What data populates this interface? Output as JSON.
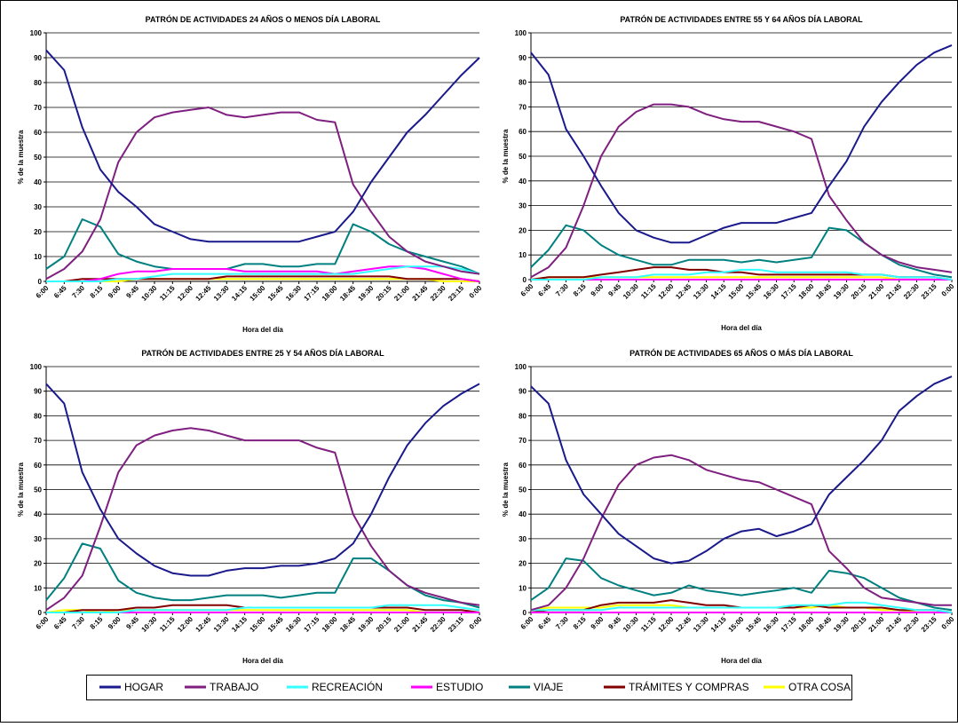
{
  "chart_data": [
    {
      "type": "line",
      "title": "PATRÓN DE ACTIVIDADES 24 AÑOS O MENOS  DÍA LABORAL",
      "xlabel": "Hora del día",
      "ylabel": "% de la muestra",
      "categories": [
        "6:00",
        "6:45",
        "7:30",
        "8:15",
        "9:00",
        "9:45",
        "10:30",
        "11:15",
        "12:00",
        "12:45",
        "13:30",
        "14:15",
        "15:00",
        "15:45",
        "16:30",
        "17:15",
        "18:00",
        "18:45",
        "19:30",
        "20:15",
        "21:00",
        "21:45",
        "22:30",
        "23:15",
        "0:00"
      ],
      "ylim": [
        0,
        100
      ],
      "yticks": [
        0,
        10,
        20,
        30,
        40,
        50,
        60,
        70,
        80,
        90,
        100
      ],
      "grid": true,
      "series": [
        {
          "name": "HOGAR",
          "color": "#1a1a8c",
          "values": [
            93,
            85,
            62,
            45,
            36,
            30,
            23,
            20,
            17,
            16,
            16,
            16,
            16,
            16,
            16,
            18,
            20,
            28,
            40,
            50,
            60,
            67,
            75,
            83,
            90
          ]
        },
        {
          "name": "TRABAJO",
          "color": "#7f1f7f",
          "values": [
            1,
            5,
            12,
            25,
            48,
            60,
            66,
            68,
            69,
            70,
            67,
            66,
            67,
            68,
            68,
            65,
            64,
            39,
            28,
            18,
            12,
            8,
            6,
            4,
            3
          ]
        },
        {
          "name": "RECREACIÓN",
          "color": "#33ffff",
          "values": [
            0,
            0,
            0,
            0,
            1,
            1,
            2,
            3,
            3,
            3,
            3,
            3,
            3,
            3,
            3,
            3,
            3,
            3,
            4,
            5,
            6,
            6,
            6,
            5,
            3
          ]
        },
        {
          "name": "ESTUDIO",
          "color": "#ff00ff",
          "values": [
            0,
            0,
            0,
            1,
            3,
            4,
            4,
            5,
            5,
            5,
            5,
            4,
            4,
            4,
            4,
            4,
            3,
            4,
            5,
            6,
            6,
            5,
            3,
            1,
            0
          ]
        },
        {
          "name": "VIAJE",
          "color": "#008080",
          "values": [
            5,
            10,
            25,
            22,
            11,
            8,
            6,
            5,
            5,
            5,
            5,
            7,
            7,
            6,
            6,
            7,
            7,
            23,
            20,
            15,
            12,
            10,
            8,
            6,
            3
          ]
        },
        {
          "name": "TRÁMITES Y COMPRAS",
          "color": "#800000",
          "values": [
            0,
            0,
            1,
            1,
            1,
            1,
            1,
            1,
            1,
            1,
            2,
            2,
            2,
            2,
            2,
            2,
            2,
            2,
            2,
            2,
            1,
            1,
            1,
            1,
            0
          ]
        },
        {
          "name": "OTRA COSA",
          "color": "#ffff00",
          "values": [
            0,
            0,
            0,
            0,
            0,
            1,
            1,
            1,
            1,
            1,
            1,
            1,
            1,
            1,
            1,
            1,
            1,
            1,
            1,
            1,
            1,
            1,
            0,
            0,
            0
          ]
        }
      ]
    },
    {
      "type": "line",
      "title": "PATRÓN DE ACTIVIDADES ENTRE 55 Y 64 AÑOS DÍA LABORAL",
      "xlabel": "Hora del día",
      "ylabel": "% de la muestra",
      "categories": [
        "6:00",
        "6:45",
        "7:30",
        "8:15",
        "9:00",
        "9:45",
        "10:30",
        "11:15",
        "12:00",
        "12:45",
        "13:30",
        "14:15",
        "15:00",
        "15:45",
        "16:30",
        "17:15",
        "18:00",
        "18:45",
        "19:30",
        "20:15",
        "21:00",
        "21:45",
        "22:30",
        "23:15",
        "0:00"
      ],
      "ylim": [
        0,
        100
      ],
      "yticks": [
        0,
        10,
        20,
        30,
        40,
        50,
        60,
        70,
        80,
        90,
        100
      ],
      "grid": true,
      "series": [
        {
          "name": "HOGAR",
          "color": "#1a1a8c",
          "values": [
            92,
            83,
            61,
            50,
            38,
            27,
            20,
            17,
            15,
            15,
            18,
            21,
            23,
            23,
            23,
            25,
            27,
            38,
            48,
            62,
            72,
            80,
            87,
            92,
            95
          ]
        },
        {
          "name": "TRABAJO",
          "color": "#7f1f7f",
          "values": [
            1,
            5,
            13,
            30,
            50,
            62,
            68,
            71,
            71,
            70,
            67,
            65,
            64,
            64,
            62,
            60,
            57,
            34,
            24,
            15,
            10,
            7,
            5,
            4,
            3
          ]
        },
        {
          "name": "RECREACIÓN",
          "color": "#33ffff",
          "values": [
            0,
            0,
            0,
            0,
            1,
            1,
            1,
            2,
            2,
            2,
            3,
            3,
            4,
            4,
            3,
            3,
            3,
            3,
            3,
            2,
            2,
            1,
            1,
            1,
            0
          ]
        },
        {
          "name": "ESTUDIO",
          "color": "#ff00ff",
          "values": [
            0,
            0,
            0,
            0,
            0,
            0,
            0,
            0,
            0,
            0,
            0,
            0,
            0,
            0,
            0,
            0,
            0,
            0,
            0,
            0,
            0,
            0,
            0,
            0,
            0
          ]
        },
        {
          "name": "VIAJE",
          "color": "#008080",
          "values": [
            5,
            12,
            22,
            20,
            14,
            10,
            8,
            6,
            6,
            8,
            8,
            8,
            7,
            8,
            7,
            8,
            9,
            21,
            20,
            15,
            10,
            6,
            4,
            2,
            1
          ]
        },
        {
          "name": "TRÁMITES Y COMPRAS",
          "color": "#800000",
          "values": [
            0,
            1,
            1,
            1,
            2,
            3,
            4,
            5,
            5,
            4,
            4,
            3,
            3,
            2,
            2,
            2,
            2,
            2,
            2,
            2,
            2,
            1,
            1,
            1,
            0
          ]
        },
        {
          "name": "OTRA COSA",
          "color": "#ffff00",
          "values": [
            0,
            1,
            1,
            1,
            1,
            1,
            1,
            1,
            1,
            1,
            1,
            1,
            1,
            1,
            1,
            1,
            1,
            1,
            1,
            1,
            1,
            0,
            0,
            0,
            0
          ]
        }
      ]
    },
    {
      "type": "line",
      "title": "PATRÓN DE ACTIVIDADES ENTRE 25 Y 54 AÑOS DÍA LABORAL",
      "xlabel": "Hora del día",
      "ylabel": "% de la muestra",
      "categories": [
        "6:00",
        "6:45",
        "7:30",
        "8:15",
        "9:00",
        "9:45",
        "10:30",
        "11:15",
        "12:00",
        "12:45",
        "13:30",
        "14:15",
        "15:00",
        "15:45",
        "16:30",
        "17:15",
        "18:00",
        "18:45",
        "19:30",
        "20:15",
        "21:00",
        "21:45",
        "22:30",
        "23:15",
        "0:00"
      ],
      "ylim": [
        0,
        100
      ],
      "yticks": [
        0,
        10,
        20,
        30,
        40,
        50,
        60,
        70,
        80,
        90,
        100
      ],
      "grid": true,
      "series": [
        {
          "name": "HOGAR",
          "color": "#1a1a8c",
          "values": [
            93,
            85,
            57,
            42,
            30,
            24,
            19,
            16,
            15,
            15,
            17,
            18,
            18,
            19,
            19,
            20,
            22,
            28,
            40,
            55,
            68,
            77,
            84,
            89,
            93
          ]
        },
        {
          "name": "TRABAJO",
          "color": "#7f1f7f",
          "values": [
            1,
            6,
            15,
            35,
            57,
            68,
            72,
            74,
            75,
            74,
            72,
            70,
            70,
            70,
            70,
            67,
            65,
            40,
            27,
            17,
            11,
            8,
            6,
            4,
            3
          ]
        },
        {
          "name": "RECREACIÓN",
          "color": "#33ffff",
          "values": [
            0,
            0,
            0,
            0,
            0,
            1,
            1,
            1,
            1,
            1,
            1,
            2,
            2,
            2,
            2,
            2,
            2,
            2,
            2,
            3,
            3,
            3,
            3,
            2,
            1
          ]
        },
        {
          "name": "ESTUDIO",
          "color": "#ff00ff",
          "values": [
            0,
            0,
            0,
            0,
            0,
            0,
            0,
            0,
            0,
            0,
            0,
            0,
            0,
            0,
            0,
            0,
            0,
            0,
            0,
            0,
            0,
            0,
            0,
            0,
            0
          ]
        },
        {
          "name": "VIAJE",
          "color": "#008080",
          "values": [
            5,
            14,
            28,
            26,
            13,
            8,
            6,
            5,
            5,
            6,
            7,
            7,
            7,
            6,
            7,
            8,
            8,
            22,
            22,
            17,
            11,
            7,
            5,
            4,
            2
          ]
        },
        {
          "name": "TRÁMITES Y COMPRAS",
          "color": "#800000",
          "values": [
            0,
            0,
            1,
            1,
            1,
            2,
            2,
            3,
            3,
            3,
            3,
            2,
            2,
            2,
            2,
            2,
            2,
            2,
            2,
            2,
            2,
            1,
            1,
            1,
            0
          ]
        },
        {
          "name": "OTRA COSA",
          "color": "#ffff00",
          "values": [
            0,
            1,
            1,
            0,
            1,
            1,
            1,
            1,
            1,
            1,
            1,
            1,
            1,
            1,
            1,
            1,
            1,
            1,
            1,
            1,
            1,
            0,
            0,
            0,
            0
          ]
        }
      ]
    },
    {
      "type": "line",
      "title": "PATRÓN DE ACTIVIDADES 65 AÑOS O MÁS DÍA LABORAL",
      "xlabel": "Hora del día",
      "ylabel": "% de la muestra",
      "categories": [
        "6:00",
        "6:45",
        "7:30",
        "8:15",
        "9:00",
        "9:45",
        "10:30",
        "11:15",
        "12:00",
        "12:45",
        "13:30",
        "14:15",
        "15:00",
        "15:45",
        "16:30",
        "17:15",
        "18:00",
        "18:45",
        "19:30",
        "20:15",
        "21:00",
        "21:45",
        "22:30",
        "23:15",
        "0:00"
      ],
      "ylim": [
        0,
        100
      ],
      "yticks": [
        0,
        10,
        20,
        30,
        40,
        50,
        60,
        70,
        80,
        90,
        100
      ],
      "grid": true,
      "series": [
        {
          "name": "HOGAR",
          "color": "#1a1a8c",
          "values": [
            92,
            85,
            62,
            48,
            40,
            32,
            27,
            22,
            20,
            21,
            25,
            30,
            33,
            34,
            31,
            33,
            36,
            48,
            55,
            62,
            70,
            82,
            88,
            93,
            96
          ]
        },
        {
          "name": "TRABAJO",
          "color": "#7f1f7f",
          "values": [
            1,
            3,
            10,
            22,
            38,
            52,
            60,
            63,
            64,
            62,
            58,
            56,
            54,
            53,
            50,
            47,
            44,
            25,
            18,
            10,
            6,
            5,
            4,
            3,
            3
          ]
        },
        {
          "name": "RECREACIÓN",
          "color": "#33ffff",
          "values": [
            1,
            1,
            1,
            1,
            1,
            2,
            2,
            2,
            2,
            2,
            2,
            2,
            2,
            2,
            2,
            3,
            3,
            3,
            4,
            4,
            3,
            2,
            1,
            1,
            0
          ]
        },
        {
          "name": "ESTUDIO",
          "color": "#ff00ff",
          "values": [
            0,
            0,
            0,
            0,
            0,
            0,
            0,
            0,
            0,
            0,
            0,
            0,
            0,
            0,
            0,
            0,
            0,
            0,
            0,
            0,
            0,
            0,
            0,
            0,
            0
          ]
        },
        {
          "name": "VIAJE",
          "color": "#008080",
          "values": [
            5,
            10,
            22,
            21,
            14,
            11,
            9,
            7,
            8,
            11,
            9,
            8,
            7,
            8,
            9,
            10,
            8,
            17,
            16,
            14,
            10,
            6,
            4,
            2,
            1
          ]
        },
        {
          "name": "TRÁMITES Y COMPRAS",
          "color": "#800000",
          "values": [
            0,
            1,
            1,
            1,
            3,
            4,
            4,
            4,
            5,
            4,
            3,
            3,
            2,
            2,
            2,
            2,
            3,
            2,
            2,
            2,
            2,
            1,
            1,
            1,
            0
          ]
        },
        {
          "name": "OTRA COSA",
          "color": "#ffff00",
          "values": [
            1,
            2,
            2,
            2,
            2,
            3,
            3,
            3,
            3,
            2,
            2,
            2,
            2,
            2,
            2,
            2,
            2,
            3,
            2,
            2,
            1,
            1,
            0,
            0,
            0
          ]
        }
      ]
    }
  ]
}
